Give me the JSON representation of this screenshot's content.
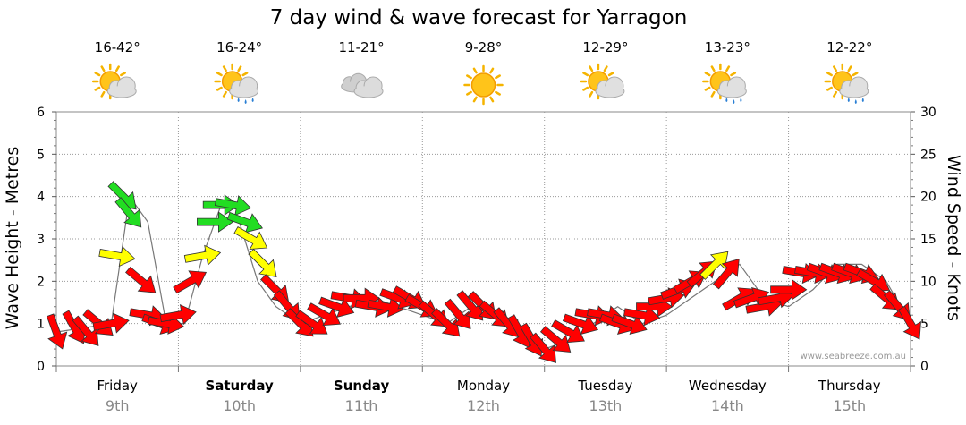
{
  "chart_data": {
    "type": "line",
    "title": "7 day wind & wave forecast for Yarragon",
    "ylabel_left": "Wave Height - Metres",
    "ylabel_right": "Wind Speed - Knots",
    "ylim_left": [
      0,
      6
    ],
    "ylim_right": [
      0,
      30
    ],
    "yticks_left": [
      "0",
      "1",
      "2",
      "3",
      "4",
      "5",
      "6"
    ],
    "yticks_right": [
      "0",
      "5",
      "10",
      "15",
      "20",
      "25",
      "30"
    ],
    "grid": true,
    "watermark": "www.seabreeze.com.au",
    "days": [
      {
        "name": "Friday",
        "date": "9th",
        "bold": false,
        "temp": "16-42°",
        "icon": "sun-cloud-icon"
      },
      {
        "name": "Saturday",
        "date": "10th",
        "bold": true,
        "temp": "16-24°",
        "icon": "sun-cloud-rain-icon"
      },
      {
        "name": "Sunday",
        "date": "11th",
        "bold": true,
        "temp": "11-21°",
        "icon": "cloud-icon"
      },
      {
        "name": "Monday",
        "date": "12th",
        "bold": false,
        "temp": "9-28°",
        "icon": "sun-icon"
      },
      {
        "name": "Tuesday",
        "date": "13th",
        "bold": false,
        "temp": "12-29°",
        "icon": "sun-cloud-icon"
      },
      {
        "name": "Wednesday",
        "date": "14th",
        "bold": false,
        "temp": "13-23°",
        "icon": "sun-cloud-rain-icon"
      },
      {
        "name": "Thursday",
        "date": "15th",
        "bold": false,
        "temp": "12-22°",
        "icon": "sun-cloud-rain-icon"
      }
    ],
    "wind_line": {
      "x": [
        0.0,
        0.45,
        0.5,
        0.6,
        0.75,
        0.9,
        1.05,
        1.2,
        1.35,
        1.5,
        1.65,
        1.8,
        2.0,
        2.2,
        2.4,
        2.6,
        2.8,
        3.0,
        3.2,
        3.4,
        3.6,
        3.8,
        4.0,
        4.2,
        4.4,
        4.6,
        4.8,
        5.0,
        5.2,
        5.4,
        5.6,
        5.8,
        6.0,
        6.2,
        6.4,
        6.6,
        6.8,
        7.0
      ],
      "knots": [
        4,
        5,
        10,
        20,
        17,
        5,
        5,
        13,
        19,
        17,
        10,
        7,
        5,
        6,
        7,
        8,
        7,
        6,
        5,
        7,
        6,
        4,
        2,
        3,
        5,
        7,
        5,
        6,
        8,
        10,
        12,
        8,
        7,
        9,
        12,
        12,
        10,
        5
      ]
    },
    "wind_arrows": {
      "x": [
        0.0,
        0.15,
        0.25,
        0.35,
        0.45,
        0.5,
        0.55,
        0.6,
        0.7,
        0.75,
        0.85,
        0.9,
        1.0,
        1.1,
        1.2,
        1.3,
        1.35,
        1.45,
        1.55,
        1.6,
        1.7,
        1.8,
        1.9,
        2.0,
        2.1,
        2.2,
        2.3,
        2.4,
        2.5,
        2.6,
        2.7,
        2.8,
        2.9,
        3.0,
        3.1,
        3.2,
        3.3,
        3.4,
        3.5,
        3.6,
        3.7,
        3.8,
        3.9,
        4.0,
        4.1,
        4.2,
        4.3,
        4.4,
        4.5,
        4.6,
        4.7,
        4.8,
        4.9,
        5.0,
        5.1,
        5.2,
        5.3,
        5.4,
        5.5,
        5.6,
        5.7,
        5.8,
        5.9,
        6.0,
        6.1,
        6.2,
        6.3,
        6.4,
        6.5,
        6.6,
        6.7,
        6.8,
        6.9,
        7.0
      ],
      "knots": [
        4,
        4.5,
        4,
        5,
        5,
        13,
        20,
        18,
        10,
        6,
        5,
        5,
        6,
        10,
        13,
        17,
        19,
        19,
        17,
        15,
        12,
        9,
        7,
        5,
        5,
        6,
        7,
        8,
        8,
        7,
        7,
        8,
        8,
        7,
        6,
        5,
        6,
        7,
        7,
        6,
        5,
        4,
        3,
        2,
        3,
        4,
        5,
        6,
        6,
        5,
        5,
        6,
        7,
        8,
        9,
        10,
        11,
        12,
        11,
        8,
        8,
        7,
        8,
        9,
        11,
        11,
        11,
        11,
        11,
        11,
        10,
        8,
        7,
        5
      ],
      "dir_deg": [
        160,
        150,
        140,
        130,
        80,
        100,
        135,
        140,
        130,
        100,
        110,
        100,
        80,
        60,
        80,
        90,
        90,
        100,
        110,
        120,
        135,
        135,
        140,
        135,
        125,
        120,
        110,
        100,
        90,
        100,
        100,
        110,
        120,
        120,
        130,
        135,
        140,
        140,
        135,
        130,
        140,
        150,
        150,
        140,
        130,
        120,
        110,
        100,
        100,
        110,
        110,
        100,
        90,
        80,
        70,
        60,
        50,
        45,
        40,
        60,
        70,
        80,
        80,
        90,
        100,
        100,
        110,
        110,
        110,
        110,
        120,
        130,
        140,
        150
      ]
    }
  }
}
